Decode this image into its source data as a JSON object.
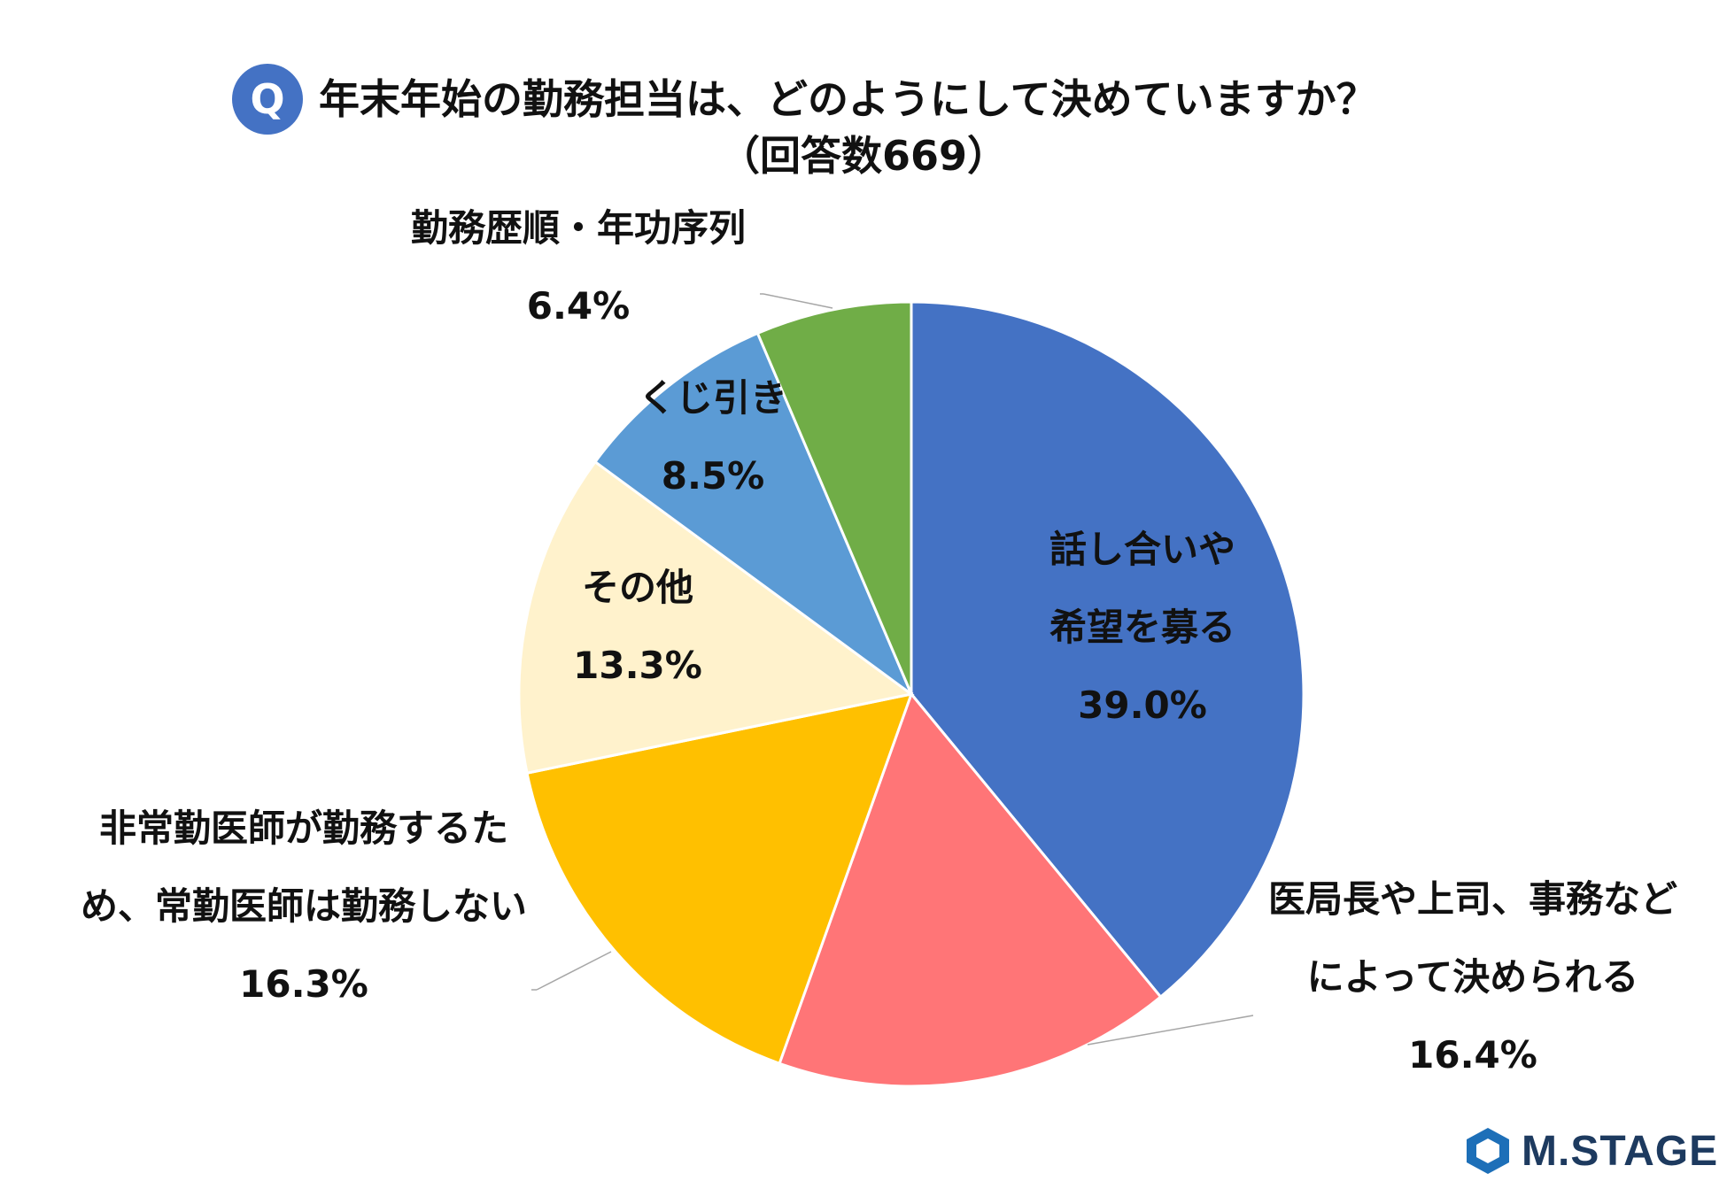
{
  "header": {
    "badge": "Q",
    "title_line1": "年末年始の勤務担当は、どのようにして決めていますか？",
    "title_line2": "（回答数669）"
  },
  "chart_data": {
    "type": "pie",
    "title": "年末年始の勤務担当は、どのようにして決めていますか？（回答数669）",
    "slices": [
      {
        "lines": [
          "話し合いや",
          "希望を募る"
        ],
        "pct_label": "39.0%",
        "value": 39.0,
        "color": "#4472c4"
      },
      {
        "lines": [
          "医局長や上司、事務など",
          "によって決められる"
        ],
        "pct_label": "16.4%",
        "value": 16.4,
        "color": "#ff7577"
      },
      {
        "lines": [
          "非常勤医師が勤務するた",
          "め、常勤医師は勤務しない"
        ],
        "pct_label": "16.3%",
        "value": 16.3,
        "color": "#ffc000"
      },
      {
        "lines": [
          "その他"
        ],
        "pct_label": "13.3%",
        "value": 13.3,
        "color": "#fff2cc"
      },
      {
        "lines": [
          "くじ引き"
        ],
        "pct_label": "8.5%",
        "value": 8.5,
        "color": "#5b9bd5"
      },
      {
        "lines": [
          "勤務歴順・年功序列"
        ],
        "pct_label": "6.4%",
        "value": 6.4,
        "color": "#70ad47"
      }
    ]
  },
  "logo": {
    "text": "M.STAGE"
  }
}
